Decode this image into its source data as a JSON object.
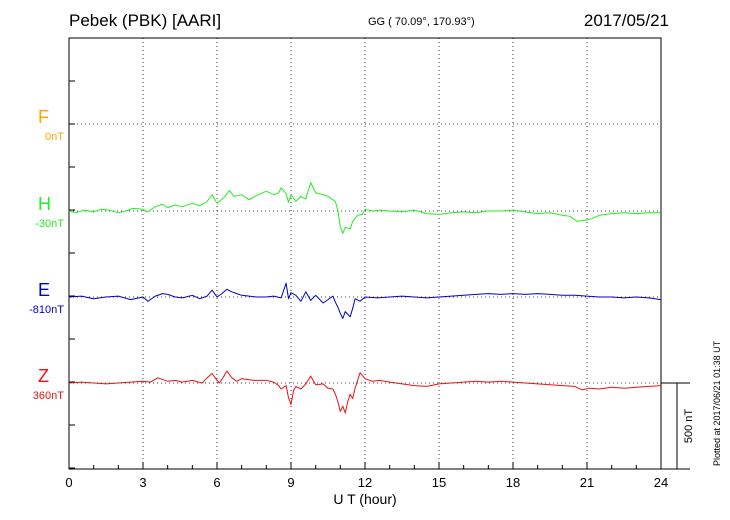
{
  "header": {
    "title": "Pebek (PBK)  [AARI]",
    "coords": "GG ( 70.09°, 170.93°)",
    "date": "2017/05/21"
  },
  "footer": {
    "plotted": "Plotted at 2017/06/21 01:38 UT"
  },
  "chart_data": {
    "type": "line",
    "xlabel": "U T (hour)",
    "xlim": [
      0,
      24
    ],
    "xticks": [
      "0",
      "3",
      "6",
      "9",
      "12",
      "15",
      "18",
      "21",
      "24"
    ],
    "grid": true,
    "scale_bar": "500 nT",
    "channels": [
      {
        "name": "F",
        "baseline": "0nT",
        "color": "#ffa500",
        "values": []
      },
      {
        "name": "H",
        "baseline": "-30nT",
        "color": "#22ee22",
        "points": [
          [
            0,
            0
          ],
          [
            0.3,
            -10
          ],
          [
            0.6,
            5
          ],
          [
            1.0,
            -5
          ],
          [
            1.3,
            10
          ],
          [
            1.6,
            5
          ],
          [
            2.0,
            -10
          ],
          [
            2.3,
            0
          ],
          [
            2.6,
            15
          ],
          [
            3.0,
            10
          ],
          [
            3.2,
            -5
          ],
          [
            3.5,
            25
          ],
          [
            3.8,
            40
          ],
          [
            4.0,
            20
          ],
          [
            4.3,
            35
          ],
          [
            4.6,
            25
          ],
          [
            5.0,
            45
          ],
          [
            5.3,
            30
          ],
          [
            5.6,
            55
          ],
          [
            5.8,
            95
          ],
          [
            6.0,
            45
          ],
          [
            6.3,
            80
          ],
          [
            6.5,
            120
          ],
          [
            6.7,
            85
          ],
          [
            7.0,
            95
          ],
          [
            7.3,
            65
          ],
          [
            7.6,
            90
          ],
          [
            8.0,
            115
          ],
          [
            8.3,
            95
          ],
          [
            8.5,
            105
          ],
          [
            8.6,
            135
          ],
          [
            8.8,
            100
          ],
          [
            8.9,
            50
          ],
          [
            9.0,
            95
          ],
          [
            9.2,
            55
          ],
          [
            9.4,
            85
          ],
          [
            9.6,
            70
          ],
          [
            9.8,
            165
          ],
          [
            10.0,
            105
          ],
          [
            10.3,
            95
          ],
          [
            10.5,
            85
          ],
          [
            10.6,
            75
          ],
          [
            10.8,
            55
          ],
          [
            10.9,
            0
          ],
          [
            11.0,
            -90
          ],
          [
            11.1,
            -130
          ],
          [
            11.2,
            -95
          ],
          [
            11.4,
            -105
          ],
          [
            11.5,
            -60
          ],
          [
            11.7,
            -25
          ],
          [
            11.9,
            -20
          ],
          [
            12.0,
            10
          ],
          [
            12.3,
            0
          ],
          [
            12.6,
            5
          ],
          [
            13.0,
            0
          ],
          [
            13.5,
            -5
          ],
          [
            14.0,
            5
          ],
          [
            14.5,
            -15
          ],
          [
            15.0,
            -20
          ],
          [
            15.5,
            -10
          ],
          [
            16.0,
            -5
          ],
          [
            16.5,
            -10
          ],
          [
            17.0,
            0
          ],
          [
            17.5,
            0
          ],
          [
            18.0,
            5
          ],
          [
            18.5,
            -5
          ],
          [
            19.0,
            -15
          ],
          [
            19.5,
            -10
          ],
          [
            20.0,
            -25
          ],
          [
            20.3,
            -30
          ],
          [
            20.6,
            -60
          ],
          [
            20.9,
            -55
          ],
          [
            21.2,
            -45
          ],
          [
            21.5,
            -25
          ],
          [
            22.0,
            -15
          ],
          [
            22.5,
            -10
          ],
          [
            23.0,
            -15
          ],
          [
            23.5,
            -10
          ],
          [
            24.0,
            -10
          ]
        ]
      },
      {
        "name": "E",
        "baseline": "-810nT",
        "color": "#0000cc",
        "points": [
          [
            0,
            0
          ],
          [
            0.5,
            5
          ],
          [
            1.0,
            -10
          ],
          [
            1.5,
            0
          ],
          [
            2.0,
            5
          ],
          [
            2.5,
            -15
          ],
          [
            3.0,
            0
          ],
          [
            3.2,
            -25
          ],
          [
            3.5,
            5
          ],
          [
            3.8,
            20
          ],
          [
            4.0,
            15
          ],
          [
            4.3,
            0
          ],
          [
            4.6,
            -5
          ],
          [
            5.0,
            10
          ],
          [
            5.3,
            -10
          ],
          [
            5.6,
            5
          ],
          [
            5.8,
            40
          ],
          [
            6.0,
            0
          ],
          [
            6.2,
            20
          ],
          [
            6.4,
            45
          ],
          [
            6.6,
            30
          ],
          [
            6.8,
            20
          ],
          [
            7.0,
            10
          ],
          [
            7.3,
            5
          ],
          [
            7.6,
            0
          ],
          [
            8.0,
            0
          ],
          [
            8.3,
            5
          ],
          [
            8.6,
            -5
          ],
          [
            8.8,
            80
          ],
          [
            8.9,
            -10
          ],
          [
            9.0,
            25
          ],
          [
            9.2,
            10
          ],
          [
            9.4,
            -25
          ],
          [
            9.6,
            30
          ],
          [
            9.8,
            -20
          ],
          [
            10.0,
            10
          ],
          [
            10.3,
            -35
          ],
          [
            10.5,
            -15
          ],
          [
            10.7,
            5
          ],
          [
            10.8,
            -30
          ],
          [
            10.9,
            -60
          ],
          [
            11.0,
            -95
          ],
          [
            11.1,
            -125
          ],
          [
            11.2,
            -85
          ],
          [
            11.4,
            -115
          ],
          [
            11.5,
            -65
          ],
          [
            11.6,
            -10
          ],
          [
            11.8,
            -25
          ],
          [
            12.0,
            0
          ],
          [
            12.5,
            -5
          ],
          [
            13.0,
            0
          ],
          [
            13.5,
            5
          ],
          [
            14.0,
            0
          ],
          [
            14.5,
            -5
          ],
          [
            15.0,
            0
          ],
          [
            15.5,
            5
          ],
          [
            16.0,
            10
          ],
          [
            16.5,
            15
          ],
          [
            17.0,
            20
          ],
          [
            17.5,
            15
          ],
          [
            18.0,
            20
          ],
          [
            18.5,
            15
          ],
          [
            19.0,
            20
          ],
          [
            19.5,
            15
          ],
          [
            20.0,
            10
          ],
          [
            20.5,
            10
          ],
          [
            21.0,
            5
          ],
          [
            21.5,
            0
          ],
          [
            22.0,
            0
          ],
          [
            22.5,
            -5
          ],
          [
            23.0,
            0
          ],
          [
            23.5,
            -5
          ],
          [
            24.0,
            -15
          ]
        ]
      },
      {
        "name": "Z",
        "baseline": "360nT",
        "color": "#ee1111",
        "points": [
          [
            0,
            0
          ],
          [
            0.5,
            5
          ],
          [
            1.0,
            0
          ],
          [
            1.5,
            -5
          ],
          [
            2.0,
            0
          ],
          [
            2.5,
            5
          ],
          [
            3.0,
            10
          ],
          [
            3.3,
            5
          ],
          [
            3.6,
            30
          ],
          [
            4.0,
            10
          ],
          [
            4.3,
            15
          ],
          [
            4.6,
            5
          ],
          [
            5.0,
            15
          ],
          [
            5.4,
            0
          ],
          [
            5.6,
            30
          ],
          [
            5.8,
            55
          ],
          [
            6.0,
            15
          ],
          [
            6.1,
            0
          ],
          [
            6.3,
            45
          ],
          [
            6.4,
            70
          ],
          [
            6.6,
            30
          ],
          [
            6.8,
            10
          ],
          [
            7.0,
            25
          ],
          [
            7.5,
            15
          ],
          [
            8.0,
            15
          ],
          [
            8.3,
            5
          ],
          [
            8.5,
            -15
          ],
          [
            8.6,
            -35
          ],
          [
            8.8,
            -15
          ],
          [
            8.9,
            -85
          ],
          [
            9.0,
            -125
          ],
          [
            9.1,
            -45
          ],
          [
            9.2,
            -20
          ],
          [
            9.4,
            -35
          ],
          [
            9.6,
            -5
          ],
          [
            9.8,
            40
          ],
          [
            10.0,
            -10
          ],
          [
            10.3,
            -5
          ],
          [
            10.5,
            -30
          ],
          [
            10.7,
            -35
          ],
          [
            10.8,
            -65
          ],
          [
            10.9,
            -110
          ],
          [
            11.0,
            -165
          ],
          [
            11.1,
            -135
          ],
          [
            11.2,
            -175
          ],
          [
            11.3,
            -110
          ],
          [
            11.4,
            -65
          ],
          [
            11.5,
            -90
          ],
          [
            11.6,
            -30
          ],
          [
            11.8,
            60
          ],
          [
            12.0,
            25
          ],
          [
            12.3,
            10
          ],
          [
            12.6,
            15
          ],
          [
            13.0,
            5
          ],
          [
            13.5,
            -5
          ],
          [
            14.0,
            -15
          ],
          [
            14.5,
            -20
          ],
          [
            15.0,
            -5
          ],
          [
            15.5,
            0
          ],
          [
            16.0,
            5
          ],
          [
            16.5,
            10
          ],
          [
            17.0,
            5
          ],
          [
            17.5,
            10
          ],
          [
            18.0,
            5
          ],
          [
            18.5,
            0
          ],
          [
            19.0,
            -5
          ],
          [
            19.5,
            -10
          ],
          [
            20.0,
            -15
          ],
          [
            20.5,
            -20
          ],
          [
            20.8,
            -40
          ],
          [
            21.1,
            -30
          ],
          [
            21.5,
            -35
          ],
          [
            22.0,
            -25
          ],
          [
            22.5,
            -30
          ],
          [
            23.0,
            -25
          ],
          [
            23.5,
            -20
          ],
          [
            24.0,
            -15
          ]
        ]
      }
    ]
  }
}
